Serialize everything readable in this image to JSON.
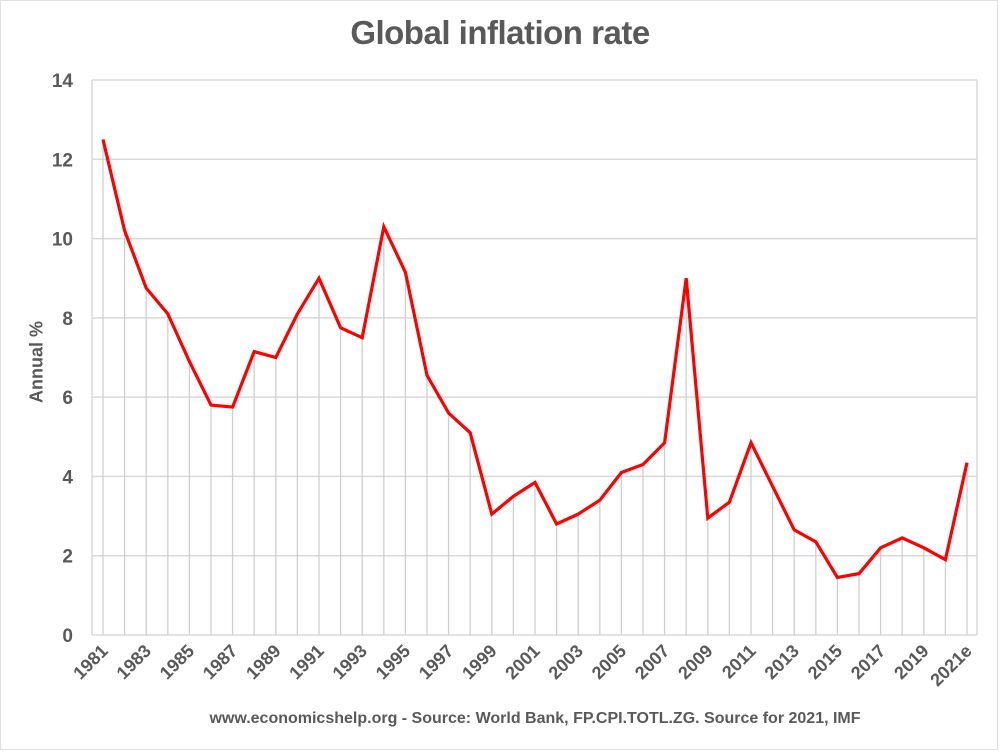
{
  "chart_data": {
    "type": "line",
    "title": "Global inflation rate",
    "xlabel": "",
    "ylabel": "Annual %",
    "ylim": [
      0,
      14
    ],
    "yticks": [
      0,
      2,
      4,
      6,
      8,
      10,
      12,
      14
    ],
    "grid": true,
    "legend": "none",
    "line_color": "#ff0000",
    "grid_color": "#d9d9d9",
    "x": [
      "1981",
      "1982",
      "1983",
      "1984",
      "1985",
      "1986",
      "1987",
      "1988",
      "1989",
      "1990",
      "1991",
      "1992",
      "1993",
      "1994",
      "1995",
      "1996",
      "1997",
      "1998",
      "1999",
      "2000",
      "2001",
      "2002",
      "2003",
      "2004",
      "2005",
      "2006",
      "2007",
      "2008",
      "2009",
      "2010",
      "2011",
      "2012",
      "2013",
      "2014",
      "2015",
      "2016",
      "2017",
      "2018",
      "2019",
      "2020",
      "2021e"
    ],
    "x_tick_labels": [
      "1981",
      "1983",
      "1985",
      "1987",
      "1989",
      "1991",
      "1993",
      "1995",
      "1997",
      "1999",
      "2001",
      "2003",
      "2005",
      "2007",
      "2009",
      "2011",
      "2013",
      "2015",
      "2017",
      "2019",
      "2021e"
    ],
    "series": [
      {
        "name": "Global inflation rate",
        "values": [
          12.5,
          10.2,
          8.75,
          8.1,
          6.9,
          5.8,
          5.75,
          7.15,
          7.0,
          8.1,
          9.0,
          7.75,
          7.5,
          10.3,
          9.15,
          6.55,
          5.6,
          5.1,
          3.05,
          3.5,
          3.85,
          2.8,
          3.05,
          3.4,
          4.1,
          4.3,
          4.85,
          9.0,
          2.95,
          3.35,
          4.85,
          3.75,
          2.65,
          2.35,
          1.45,
          1.55,
          2.2,
          2.45,
          2.2,
          1.9,
          4.35
        ]
      }
    ],
    "footer": "www.economicshelp.org - Source: World Bank, FP.CPI.TOTL.ZG. Source for 2021, IMF"
  }
}
